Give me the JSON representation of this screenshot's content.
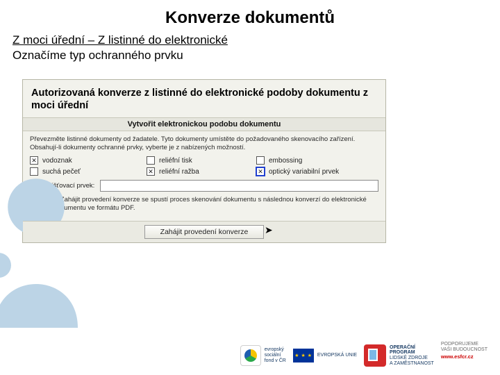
{
  "colors": {
    "bg_shape": "#bcd4e6",
    "panel_bg": "#f2f2ec",
    "panel_border": "#b6b6a6",
    "highlight": "#2040d0"
  },
  "title": "Konverze dokumentů",
  "subtitle": "Z moci úřední – Z listinné do elektronické",
  "desc": "Označíme typ ochranného prvku",
  "panel": {
    "heading": "Autorizovaná konverze z listinné do elektronické podoby dokumentu z moci úřední",
    "sub": "Vytvořit elektronickou podobu dokumentu",
    "instr": "Převezměte listinné dokumenty od žadatele. Tyto dokumenty umístěte do požadovaného skenovacího zařízení. Obsahují-li dokumenty ochranné prvky, vyberte je z nabízených možností.",
    "checks": [
      {
        "label": "vodoznak",
        "checked": true,
        "selected": false
      },
      {
        "label": "reliéfní tisk",
        "checked": false,
        "selected": false
      },
      {
        "label": "embossing",
        "checked": false,
        "selected": false
      },
      {
        "label": "suchá pečeť",
        "checked": false,
        "selected": false
      },
      {
        "label": "reliéfní ražba",
        "checked": true,
        "selected": false
      },
      {
        "label": "optický variabilní prvek",
        "checked": true,
        "selected": true
      }
    ],
    "field_label": "Jiný zajišťovací prvek:",
    "hint": "Tlačítkem Zahájit provedení konverze se spustí proces skenování dokumentu s následnou konverzí do elektronické podoby dokumentu ve formátu PDF.",
    "button": "Zahájit provedení konverze"
  },
  "footer": {
    "eu_label": "evropský\nsociální\nfond v ČR",
    "eu2": "EVROPSKÁ UNIE",
    "op1": "OPERAČNÍ\nPROGRAM",
    "op2": "LIDSKÉ ZDROJE\nA ZAMĚSTNANOST",
    "support": "PODPORUJEME\nVAŠI BUDOUCNOST",
    "url": "www.esfcr.cz"
  }
}
